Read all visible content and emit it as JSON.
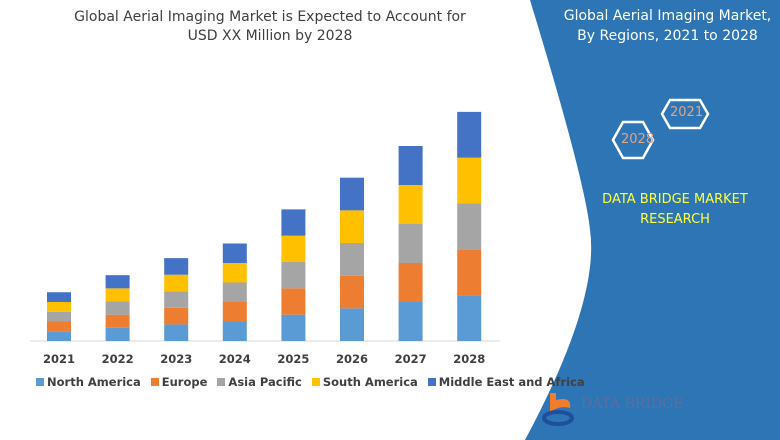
{
  "header": {
    "title_line1": "Global Aerial Imaging Market is Expected to Account for",
    "title_line2": "USD XX Million by 2028"
  },
  "side_panel": {
    "title_line1": "Global Aerial Imaging Market,",
    "title_line2": "By Regions, 2021 to 2028",
    "hex_start": "2021",
    "hex_end": "2028",
    "brand_line1": "DATA BRIDGE MARKET",
    "brand_line2": "RESEARCH",
    "logo_text": "DATA BRIDGE",
    "color": "#2e75b6"
  },
  "chart_data": {
    "type": "bar",
    "stacked": true,
    "grid": false,
    "legend_position": "bottom",
    "categories": [
      "2021",
      "2022",
      "2023",
      "2024",
      "2025",
      "2026",
      "2027",
      "2028"
    ],
    "series": [
      {
        "name": "North America",
        "color": "#5b9bd5",
        "values": [
          1.0,
          1.35,
          1.7,
          2.0,
          2.7,
          3.35,
          4.0,
          4.7
        ]
      },
      {
        "name": "Europe",
        "color": "#ed7d31",
        "values": [
          1.0,
          1.35,
          1.7,
          2.0,
          2.7,
          3.35,
          4.0,
          4.7
        ]
      },
      {
        "name": "Asia Pacific",
        "color": "#a5a5a5",
        "values": [
          1.0,
          1.35,
          1.7,
          2.0,
          2.7,
          3.35,
          4.0,
          4.7
        ]
      },
      {
        "name": "South America",
        "color": "#ffc000",
        "values": [
          1.0,
          1.35,
          1.7,
          2.0,
          2.7,
          3.35,
          4.0,
          4.7
        ]
      },
      {
        "name": "Middle East and Africa",
        "color": "#4472c4",
        "values": [
          1.0,
          1.35,
          1.7,
          2.0,
          2.7,
          3.35,
          4.0,
          4.7
        ]
      }
    ]
  }
}
